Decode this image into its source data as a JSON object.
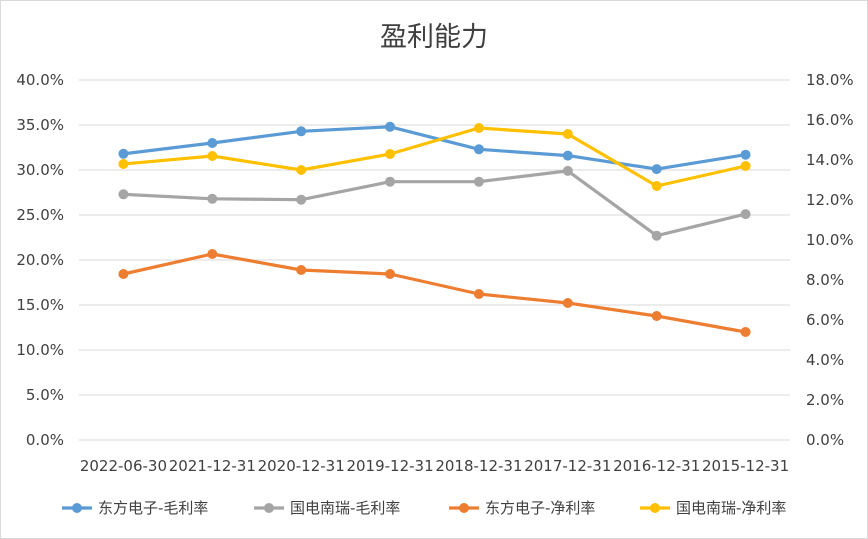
{
  "chart_data": {
    "type": "line",
    "title": "盈利能力",
    "xlabel": "",
    "ylabel": "",
    "categories": [
      "2022-06-30",
      "2021-12-31",
      "2020-12-31",
      "2019-12-31",
      "2018-12-31",
      "2017-12-31",
      "2016-12-31",
      "2015-12-31"
    ],
    "y_left": {
      "ylim": [
        0,
        40
      ],
      "ticks": [
        "0.0%",
        "5.0%",
        "10.0%",
        "15.0%",
        "20.0%",
        "25.0%",
        "30.0%",
        "35.0%",
        "40.0%"
      ]
    },
    "y_right": {
      "ylim": [
        0,
        18
      ],
      "ticks": [
        "0.0%",
        "2.0%",
        "4.0%",
        "6.0%",
        "8.0%",
        "10.0%",
        "12.0%",
        "14.0%",
        "16.0%",
        "18.0%"
      ]
    },
    "grid": true,
    "legend_position": "bottom",
    "series": [
      {
        "name": "东方电子-毛利率",
        "axis": "left",
        "color": "#5B9BD5",
        "values": [
          31.8,
          33.0,
          34.3,
          34.8,
          32.3,
          31.6,
          30.1,
          31.7
        ]
      },
      {
        "name": "国电南瑞-毛利率",
        "axis": "left",
        "color": "#A5A5A5",
        "values": [
          27.3,
          26.8,
          26.7,
          28.7,
          28.7,
          29.9,
          22.7,
          25.1
        ]
      },
      {
        "name": "东方电子-净利率",
        "axis": "right",
        "color": "#ED7D31",
        "values": [
          8.3,
          9.3,
          8.5,
          8.3,
          7.3,
          6.85,
          6.2,
          5.4
        ]
      },
      {
        "name": "国电南瑞-净利率",
        "axis": "right",
        "color": "#FFC000",
        "values": [
          13.8,
          14.2,
          13.5,
          14.3,
          15.6,
          15.3,
          12.7,
          13.7
        ]
      }
    ]
  }
}
